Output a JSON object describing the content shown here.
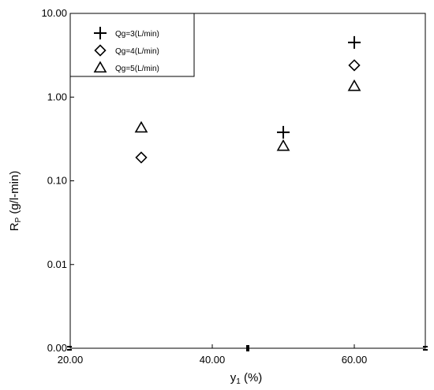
{
  "chart_data": {
    "type": "scatter",
    "xlabel_main": "y",
    "xlabel_sub": "1",
    "xlabel_unit": "(%)",
    "ylabel_main": "R",
    "ylabel_sub": "P",
    "ylabel_unit": "(g/l-min)",
    "xlim": [
      20,
      70
    ],
    "ylim": [
      0.001,
      10
    ],
    "yscale": "log",
    "x_ticks": [
      {
        "value": 20,
        "label": "20.00"
      },
      {
        "value": 40,
        "label": "40.00"
      },
      {
        "value": 60,
        "label": "60.00"
      }
    ],
    "y_ticks": [
      {
        "value": 10,
        "label": "10.00"
      },
      {
        "value": 1,
        "label": "1.00"
      },
      {
        "value": 0.1,
        "label": "0.10"
      },
      {
        "value": 0.01,
        "label": "0.01"
      },
      {
        "value": 0.001,
        "label": "0.00"
      }
    ],
    "series": [
      {
        "name": "Qg=3(L/min)",
        "marker": "plus",
        "x": [
          50,
          60
        ],
        "y": [
          0.38,
          4.5
        ]
      },
      {
        "name": "Qg=4(L/min)",
        "marker": "diamond",
        "x": [
          30,
          60
        ],
        "y": [
          0.19,
          2.4
        ]
      },
      {
        "name": "Qg=5(L/min)",
        "marker": "triangle",
        "x": [
          30,
          50,
          60
        ],
        "y": [
          0.43,
          0.26,
          1.35
        ]
      }
    ],
    "grid": false,
    "legend_position": "top-left"
  }
}
